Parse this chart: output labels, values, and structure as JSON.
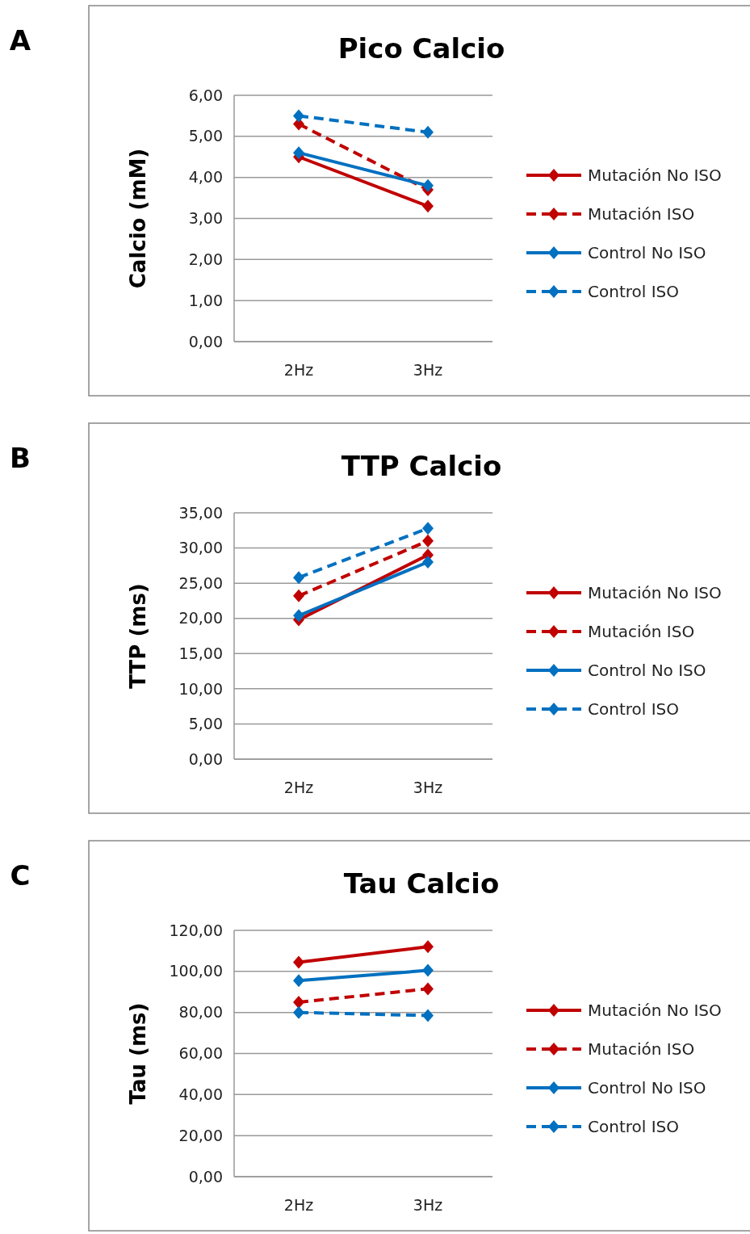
{
  "chart_data": [
    {
      "type": "line",
      "title": "Pico Calcio",
      "ylabel": "Calcio (mM)",
      "annotations": [
        "A"
      ],
      "categories": [
        "2Hz",
        "3Hz"
      ],
      "ylim": [
        0,
        6
      ],
      "yticks": [
        {
          "value": 0,
          "label": "0,00"
        },
        {
          "value": 1,
          "label": "1,00"
        },
        {
          "value": 2,
          "label": "2,00"
        },
        {
          "value": 3,
          "label": "3,00"
        },
        {
          "value": 4,
          "label": "4,00"
        },
        {
          "value": 5,
          "label": "5,00"
        },
        {
          "value": 6,
          "label": "6,00"
        }
      ],
      "grid": "y",
      "legend": "right",
      "marker": "diamond",
      "series": [
        {
          "name": "Mutación No ISO",
          "color": "#c00000",
          "line_style": "solid",
          "values": [
            4.5,
            3.3
          ]
        },
        {
          "name": "Mutación ISO",
          "color": "#c00000",
          "line_style": "dashed",
          "values": [
            5.3,
            3.7
          ]
        },
        {
          "name": "Control No ISO",
          "color": "#0070c0",
          "line_style": "solid",
          "values": [
            4.6,
            3.8
          ]
        },
        {
          "name": "Control ISO",
          "color": "#0070c0",
          "line_style": "dashed",
          "values": [
            5.5,
            5.1
          ]
        }
      ]
    },
    {
      "type": "line",
      "title": "TTP Calcio",
      "ylabel": "TTP (ms)",
      "annotations": [
        "B"
      ],
      "categories": [
        "2Hz",
        "3Hz"
      ],
      "ylim": [
        0,
        35
      ],
      "yticks": [
        {
          "value": 0,
          "label": "0,00"
        },
        {
          "value": 5,
          "label": "5,00"
        },
        {
          "value": 10,
          "label": "10,00"
        },
        {
          "value": 15,
          "label": "15,00"
        },
        {
          "value": 20,
          "label": "20,00"
        },
        {
          "value": 25,
          "label": "25,00"
        },
        {
          "value": 30,
          "label": "30,00"
        },
        {
          "value": 35,
          "label": "35,00"
        }
      ],
      "grid": "y",
      "legend": "right",
      "marker": "diamond",
      "series": [
        {
          "name": "Mutación No ISO",
          "color": "#c00000",
          "line_style": "solid",
          "values": [
            19.8,
            29
          ]
        },
        {
          "name": "Mutación ISO",
          "color": "#c00000",
          "line_style": "dashed",
          "values": [
            23.2,
            31
          ]
        },
        {
          "name": "Control No ISO",
          "color": "#0070c0",
          "line_style": "solid",
          "values": [
            20.4,
            28
          ]
        },
        {
          "name": "Control ISO",
          "color": "#0070c0",
          "line_style": "dashed",
          "values": [
            25.8,
            32.8
          ]
        }
      ]
    },
    {
      "type": "line",
      "title": "Tau Calcio",
      "ylabel": "Tau (ms)",
      "annotations": [
        "C"
      ],
      "categories": [
        "2Hz",
        "3Hz"
      ],
      "ylim": [
        0,
        120
      ],
      "yticks": [
        {
          "value": 0,
          "label": "0,00"
        },
        {
          "value": 20,
          "label": "20,00"
        },
        {
          "value": 40,
          "label": "40,00"
        },
        {
          "value": 60,
          "label": "60,00"
        },
        {
          "value": 80,
          "label": "80,00"
        },
        {
          "value": 100,
          "label": "100,00"
        },
        {
          "value": 120,
          "label": "120,00"
        }
      ],
      "grid": "y",
      "legend": "right",
      "marker": "diamond",
      "series": [
        {
          "name": "Mutación No ISO",
          "color": "#c00000",
          "line_style": "solid",
          "values": [
            104.5,
            112
          ]
        },
        {
          "name": "Mutación ISO",
          "color": "#c00000",
          "line_style": "dashed",
          "values": [
            85,
            91.5
          ]
        },
        {
          "name": "Control No ISO",
          "color": "#0070c0",
          "line_style": "solid",
          "values": [
            95.5,
            100.5
          ]
        },
        {
          "name": "Control ISO",
          "color": "#0070c0",
          "line_style": "dashed",
          "values": [
            80,
            78.5
          ]
        }
      ]
    }
  ]
}
